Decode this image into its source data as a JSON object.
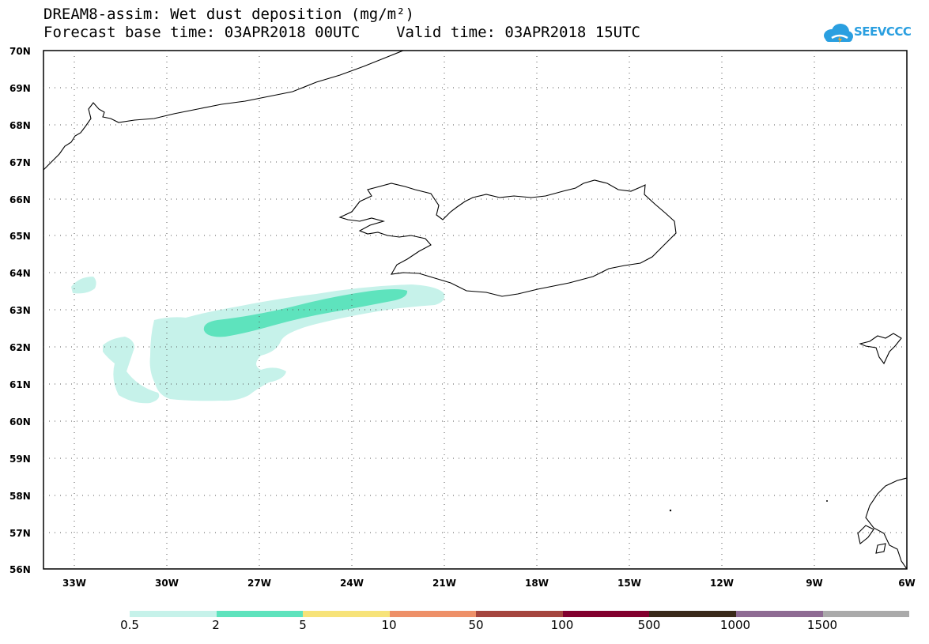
{
  "header": {
    "title_line1": "DREAM8-assim: Wet dust deposition (mg/m²)",
    "title_line2": "Forecast base time: 03APR2018 00UTC    Valid time: 03APR2018 15UTC"
  },
  "logo": {
    "text": "SEEVCCC",
    "icon": "cloud-icon",
    "color": "#2a9fe0"
  },
  "map": {
    "lat_labels": [
      "70N",
      "69N",
      "68N",
      "67N",
      "66N",
      "65N",
      "64N",
      "63N",
      "62N",
      "61N",
      "60N",
      "59N",
      "58N",
      "57N",
      "56N"
    ],
    "lon_labels": [
      "33W",
      "30W",
      "27W",
      "24W",
      "21W",
      "18W",
      "15W",
      "12W",
      "9W",
      "6W"
    ],
    "lat_range": [
      56,
      70
    ],
    "lon_range": [
      -34.0,
      -6.0
    ],
    "grid": "dotted"
  },
  "legend": {
    "thresholds": [
      "0.5",
      "2",
      "5",
      "10",
      "50",
      "100",
      "500",
      "1000",
      "1500"
    ],
    "colors": [
      "#c6f2ea",
      "#5ee3bd",
      "#f7e379",
      "#ee9068",
      "#a5453e",
      "#82002e",
      "#3a2a1a",
      "#8e6b93",
      "#aaaaaa"
    ]
  }
}
